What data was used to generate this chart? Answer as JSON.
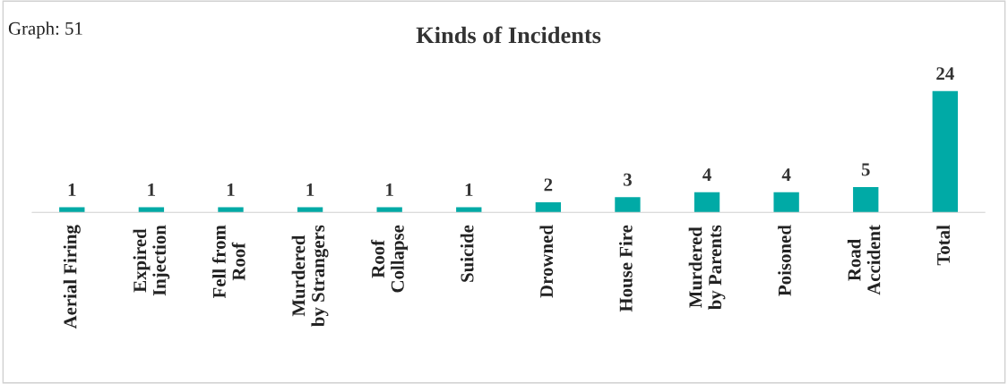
{
  "chart_data": {
    "type": "bar",
    "title": "Kinds of Incidents",
    "categories": [
      "Aerial Firing",
      "Expired\nInjection",
      "Fell from\nRoof",
      "Murdered\nby Strangers",
      "Roof\nCollapse",
      "Suicide",
      "Drowned",
      "House Fire",
      "Murdered\nby Parents",
      "Poisoned",
      "Road\nAccident",
      "Total"
    ],
    "values": [
      1,
      1,
      1,
      1,
      1,
      1,
      2,
      3,
      4,
      4,
      5,
      24
    ],
    "color": "#00aaa6",
    "data_labels": true,
    "annotations": [
      "Graph: 51"
    ]
  }
}
